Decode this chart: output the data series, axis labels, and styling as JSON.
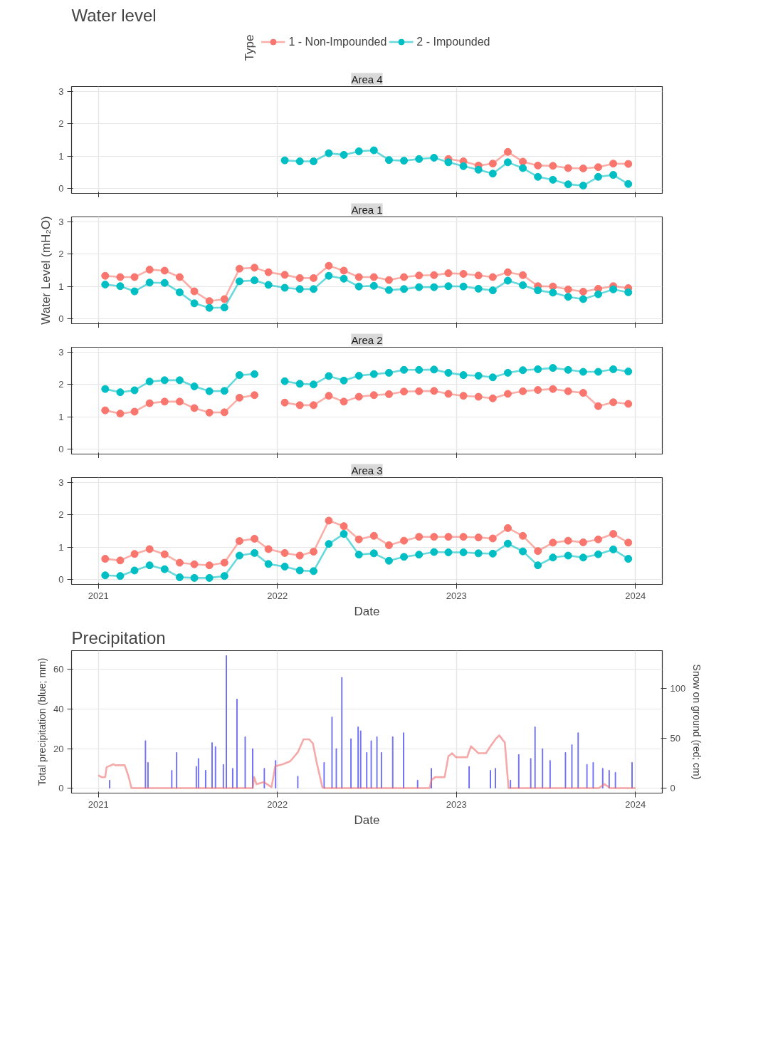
{
  "chart_data": [
    {
      "type": "line",
      "title": "Water level",
      "subtitle": "Area 4",
      "legend_title": "Type",
      "legend": "top",
      "marker": "circle",
      "grid": true,
      "tick_labels": "y",
      "xlim": [
        2020.85,
        2024.15
      ],
      "ylim": [
        -0.15,
        3.15
      ],
      "xticks": [
        2021,
        2022,
        2023,
        2024
      ],
      "yticks": [
        0,
        1,
        2,
        3
      ],
      "series": [
        {
          "name": "1 - Non-Impounded",
          "color": "#f8766d",
          "x": [
            2022.955,
            2023.039,
            2023.123,
            2023.203,
            2023.287,
            2023.371,
            2023.455,
            2023.539,
            2023.624,
            2023.708,
            2023.792,
            2023.876,
            2023.96
          ],
          "values": [
            0.91,
            0.84,
            0.71,
            0.77,
            1.13,
            0.83,
            0.71,
            0.7,
            0.63,
            0.62,
            0.66,
            0.77,
            0.76
          ]
        },
        {
          "name": "2 - Impounded",
          "color": "#00bfc4",
          "x": [
            2022.041,
            2022.125,
            2022.202,
            2022.287,
            2022.371,
            2022.455,
            2022.539,
            2022.623,
            2022.707,
            2022.791,
            2022.875,
            2022.955,
            2023.039,
            2023.123,
            2023.203,
            2023.287,
            2023.371,
            2023.455,
            2023.539,
            2023.624,
            2023.708,
            2023.792,
            2023.876,
            2023.96
          ],
          "values": [
            0.87,
            0.84,
            0.84,
            1.09,
            1.04,
            1.15,
            1.18,
            0.88,
            0.86,
            0.91,
            0.95,
            0.81,
            0.69,
            0.58,
            0.46,
            0.81,
            0.63,
            0.36,
            0.27,
            0.13,
            0.09,
            0.36,
            0.42,
            0.14
          ]
        }
      ]
    },
    {
      "type": "line",
      "subtitle": "Area 1",
      "ylabel": "Water Level (mH₂O)",
      "marker": "circle",
      "grid": true,
      "tick_labels": "y",
      "xlim": [
        2020.85,
        2024.15
      ],
      "ylim": [
        -0.15,
        3.15
      ],
      "xticks": [
        2021,
        2022,
        2023,
        2024
      ],
      "yticks": [
        0,
        1,
        2,
        3
      ],
      "x": [
        2021.038,
        2021.122,
        2021.202,
        2021.286,
        2021.37,
        2021.454,
        2021.536,
        2021.62,
        2021.704,
        2021.788,
        2021.872,
        2021.95,
        2022.041,
        2022.125,
        2022.202,
        2022.287,
        2022.371,
        2022.455,
        2022.539,
        2022.623,
        2022.707,
        2022.791,
        2022.875,
        2022.955,
        2023.039,
        2023.123,
        2023.203,
        2023.287,
        2023.371,
        2023.455,
        2023.539,
        2023.624,
        2023.708,
        2023.792,
        2023.876,
        2023.96
      ],
      "series": [
        {
          "color": "#f8766d",
          "values": [
            1.33,
            1.29,
            1.29,
            1.52,
            1.49,
            1.29,
            0.85,
            0.55,
            0.61,
            1.55,
            1.58,
            1.44,
            1.36,
            1.26,
            1.26,
            1.64,
            1.49,
            1.29,
            1.29,
            1.2,
            1.29,
            1.34,
            1.35,
            1.41,
            1.39,
            1.34,
            1.29,
            1.44,
            1.35,
            1.01,
            1.0,
            0.91,
            0.84,
            0.93,
            1.01,
            0.95
          ]
        },
        {
          "color": "#00bfc4",
          "values": [
            1.06,
            1.01,
            0.85,
            1.12,
            1.11,
            0.82,
            0.48,
            0.34,
            0.35,
            1.16,
            1.19,
            1.05,
            0.96,
            0.92,
            0.92,
            1.33,
            1.24,
            1.0,
            1.02,
            0.89,
            0.92,
            0.98,
            0.98,
            1.01,
            1.0,
            0.93,
            0.88,
            1.18,
            1.04,
            0.88,
            0.81,
            0.68,
            0.61,
            0.76,
            0.91,
            0.82
          ]
        }
      ]
    },
    {
      "type": "line",
      "subtitle": "Area 2",
      "marker": "circle",
      "grid": true,
      "tick_labels": "y",
      "xlim": [
        2020.85,
        2024.15
      ],
      "ylim": [
        -0.15,
        3.15
      ],
      "xticks": [
        2021,
        2022,
        2023,
        2024
      ],
      "yticks": [
        0,
        1,
        2,
        3
      ],
      "x": [
        2021.038,
        2021.122,
        2021.202,
        2021.286,
        2021.37,
        2021.454,
        2021.536,
        2021.62,
        2021.704,
        2021.788,
        2021.872,
        2021.95,
        2022.041,
        2022.125,
        2022.202,
        2022.287,
        2022.371,
        2022.455,
        2022.539,
        2022.623,
        2022.707,
        2022.791,
        2022.875,
        2022.955,
        2023.039,
        2023.123,
        2023.203,
        2023.287,
        2023.371,
        2023.455,
        2023.539,
        2023.624,
        2023.708,
        2023.792,
        2023.876,
        2023.96
      ],
      "series": [
        {
          "color": "#f8766d",
          "values": [
            1.2,
            1.1,
            1.16,
            1.42,
            1.47,
            1.47,
            1.27,
            1.13,
            1.14,
            1.59,
            1.67,
            null,
            1.44,
            1.36,
            1.36,
            1.65,
            1.47,
            1.62,
            1.67,
            1.7,
            1.78,
            1.79,
            1.8,
            1.71,
            1.65,
            1.62,
            1.57,
            1.71,
            1.79,
            1.83,
            1.86,
            1.79,
            1.74,
            1.33,
            1.45,
            1.4
          ]
        },
        {
          "color": "#00bfc4",
          "values": [
            1.86,
            1.76,
            1.82,
            2.09,
            2.13,
            2.13,
            1.94,
            1.79,
            1.8,
            2.29,
            2.32,
            null,
            2.1,
            2.02,
            2.0,
            2.26,
            2.12,
            2.27,
            2.32,
            2.36,
            2.45,
            2.45,
            2.46,
            2.36,
            2.29,
            2.27,
            2.22,
            2.36,
            2.44,
            2.47,
            2.51,
            2.45,
            2.39,
            2.39,
            2.47,
            2.4
          ]
        }
      ]
    },
    {
      "type": "line",
      "subtitle": "Area 3",
      "xlabel": "Date",
      "marker": "circle",
      "grid": true,
      "xlim": [
        2020.85,
        2024.15
      ],
      "ylim": [
        -0.15,
        3.15
      ],
      "xticks": [
        2021,
        2022,
        2023,
        2024
      ],
      "yticks": [
        0,
        1,
        2,
        3
      ],
      "x": [
        2021.038,
        2021.122,
        2021.202,
        2021.286,
        2021.37,
        2021.454,
        2021.536,
        2021.62,
        2021.704,
        2021.788,
        2021.872,
        2021.95,
        2022.041,
        2022.125,
        2022.202,
        2022.287,
        2022.371,
        2022.455,
        2022.539,
        2022.623,
        2022.707,
        2022.791,
        2022.875,
        2022.955,
        2023.039,
        2023.123,
        2023.203,
        2023.287,
        2023.371,
        2023.455,
        2023.539,
        2023.624,
        2023.708,
        2023.792,
        2023.876,
        2023.96
      ],
      "series": [
        {
          "color": "#f8766d",
          "values": [
            0.64,
            0.59,
            0.79,
            0.94,
            0.78,
            0.52,
            0.47,
            0.44,
            0.52,
            1.19,
            1.26,
            0.94,
            0.82,
            0.74,
            0.86,
            1.82,
            1.65,
            1.24,
            1.35,
            1.06,
            1.2,
            1.32,
            1.32,
            1.32,
            1.32,
            1.3,
            1.27,
            1.59,
            1.35,
            0.88,
            1.14,
            1.2,
            1.15,
            1.24,
            1.41,
            1.14
          ]
        },
        {
          "color": "#00bfc4",
          "values": [
            0.13,
            0.11,
            0.28,
            0.44,
            0.32,
            0.07,
            0.05,
            0.05,
            0.11,
            0.74,
            0.82,
            0.48,
            0.4,
            0.28,
            0.26,
            1.1,
            1.41,
            0.77,
            0.81,
            0.58,
            0.7,
            0.77,
            0.85,
            0.84,
            0.84,
            0.81,
            0.8,
            1.11,
            0.87,
            0.44,
            0.68,
            0.74,
            0.68,
            0.78,
            0.93,
            0.64
          ]
        }
      ]
    },
    {
      "type": "bar",
      "title": "Precipitation",
      "xlabel": "Date",
      "ylabel": "Total precipitation (blue; mm)",
      "y2label": "Snow on ground (red; cm)",
      "grid": true,
      "xlim": [
        2020.85,
        2024.15
      ],
      "ylim": [
        -2.5,
        69.5
      ],
      "xticks": [
        2021,
        2022,
        2023,
        2024
      ],
      "yticks": [
        0,
        20,
        40,
        60
      ],
      "y2lim": [
        -5,
        138
      ],
      "y2ticks": [
        0,
        50,
        100
      ],
      "series": [
        {
          "color": "#6f6ff5",
          "x": [
            2021.063,
            2021.263,
            2021.277,
            2021.41,
            2021.437,
            2021.547,
            2021.559,
            2021.599,
            2021.635,
            2021.654,
            2021.698,
            2021.715,
            2021.75,
            2021.774,
            2021.82,
            2021.862,
            2021.927,
            2021.99,
            2022.114,
            2022.261,
            2022.305,
            2022.329,
            2022.36,
            2022.411,
            2022.451,
            2022.465,
            2022.499,
            2022.524,
            2022.556,
            2022.581,
            2022.644,
            2022.705,
            2022.783,
            2022.86,
            2023.071,
            2023.19,
            2023.218,
            2023.302,
            2023.348,
            2023.415,
            2023.439,
            2023.481,
            2023.523,
            2023.609,
            2023.645,
            2023.68,
            2023.729,
            2023.764,
            2023.817,
            2023.853,
            2023.888,
            2023.981
          ],
          "values": [
            4,
            24,
            13,
            9,
            18,
            11,
            15,
            9,
            23,
            21,
            12,
            67,
            10,
            45,
            26,
            20,
            10,
            14,
            6,
            13,
            36,
            20,
            56,
            25,
            31,
            29,
            18,
            24,
            26,
            18,
            26,
            28,
            4,
            10,
            11,
            9,
            10,
            4,
            17,
            15,
            31,
            20,
            14,
            18,
            22,
            28,
            12,
            13,
            10,
            9,
            8,
            13
          ]
        },
        {
          "type": "line",
          "axis": "y2",
          "color": "#f07070",
          "x": [
            2021.0,
            2021.017,
            2021.038,
            2021.046,
            2021.084,
            2021.095,
            2021.147,
            2021.168,
            2021.185,
            2021.862,
            2021.87,
            2021.883,
            2021.925,
            2021.967,
            2021.988,
            2022.03,
            2022.072,
            2022.114,
            2022.146,
            2022.177,
            2022.198,
            2022.219,
            2022.251,
            2022.261,
            2022.85,
            2022.86,
            2022.881,
            2022.934,
            2022.955,
            2022.976,
            2022.997,
            2023.06,
            2023.081,
            2023.123,
            2023.165,
            2023.19,
            2023.218,
            2023.239,
            2023.26,
            2023.27,
            2023.291,
            2023.796,
            2023.827,
            2023.859,
            2024.0
          ],
          "values": [
            13,
            11,
            11,
            21,
            24,
            23,
            23,
            12,
            0,
            0,
            11,
            4,
            6,
            1,
            22,
            24,
            27,
            36,
            49,
            49,
            45,
            26,
            1,
            0,
            0,
            8,
            11,
            11,
            32,
            35,
            31,
            31,
            42,
            35,
            35,
            42,
            49,
            53,
            48,
            46,
            0,
            0,
            4,
            0,
            0
          ]
        }
      ]
    }
  ]
}
